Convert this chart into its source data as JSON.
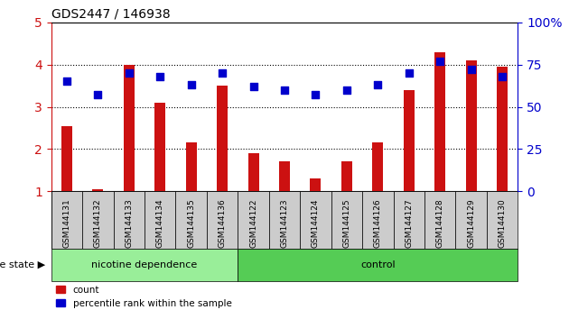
{
  "title": "GDS2447 / 146938",
  "categories": [
    "GSM144131",
    "GSM144132",
    "GSM144133",
    "GSM144134",
    "GSM144135",
    "GSM144136",
    "GSM144122",
    "GSM144123",
    "GSM144124",
    "GSM144125",
    "GSM144126",
    "GSM144127",
    "GSM144128",
    "GSM144129",
    "GSM144130"
  ],
  "bar_values": [
    2.55,
    1.05,
    4.0,
    3.1,
    2.15,
    3.5,
    1.9,
    1.72,
    1.3,
    1.72,
    2.15,
    3.4,
    4.3,
    4.1,
    3.95
  ],
  "dot_values": [
    65,
    57,
    70,
    68,
    63,
    70,
    62,
    60,
    57,
    60,
    63,
    70,
    77,
    72,
    68
  ],
  "bar_color": "#cc1111",
  "dot_color": "#0000cc",
  "ylim_left": [
    1,
    5
  ],
  "ylim_right": [
    0,
    100
  ],
  "yticks_left": [
    1,
    2,
    3,
    4,
    5
  ],
  "yticks_right": [
    0,
    25,
    50,
    75,
    100
  ],
  "grid_values": [
    2,
    3,
    4
  ],
  "nicotine_n": 6,
  "control_n": 9,
  "nicotine_color": "#99ee99",
  "control_color": "#55cc55",
  "label_box_color": "#cccccc",
  "disease_state_label": "disease state",
  "nicotine_label": "nicotine dependence",
  "control_label": "control",
  "legend_count": "count",
  "legend_percentile": "percentile rank within the sample",
  "bar_width": 0.35,
  "dot_size": 35,
  "dot_marker": "s",
  "right_axis_label_color": "#0000cc",
  "left_axis_label_color": "#cc1111",
  "background_color": "#ffffff"
}
